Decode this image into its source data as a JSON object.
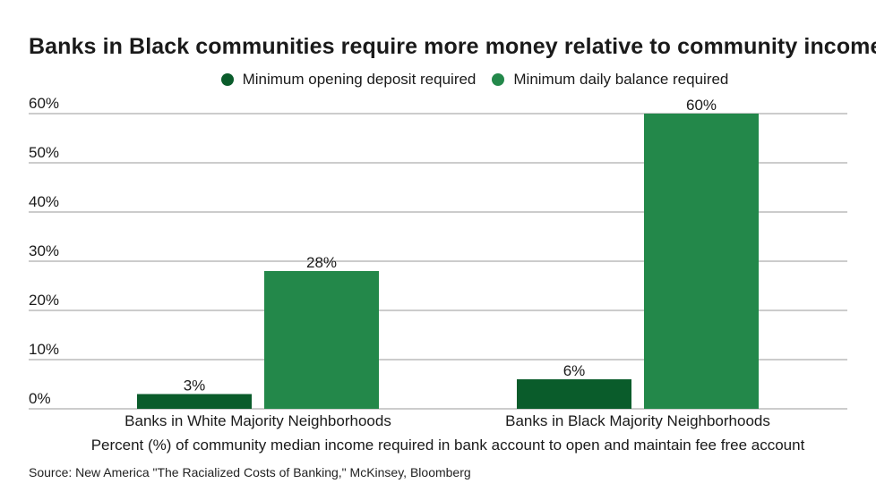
{
  "title": "Banks in Black communities require more money relative to community income",
  "source": "Source: New America \"The Racialized Costs of Banking,\" McKinsey, Bloomberg",
  "colors": {
    "deposit": "#0a5c2b",
    "balance": "#23884a",
    "grid": "#9a9a9a",
    "text": "#1a1a1a"
  },
  "chart_data": {
    "type": "bar",
    "title": "Banks in Black communities require more money relative to community income",
    "xlabel": "Percent (%) of community median income required in bank account to open and maintain fee free account",
    "ylabel": "",
    "categories": [
      "Banks in White Majority Neighborhoods",
      "Banks in Black Majority Neighborhoods"
    ],
    "series": [
      {
        "name": "Minimum opening deposit required",
        "values": [
          3,
          6
        ],
        "labels": [
          "3%",
          "6%"
        ]
      },
      {
        "name": "Minimum daily balance required",
        "values": [
          28,
          60
        ],
        "labels": [
          "28%",
          "60%"
        ]
      }
    ],
    "ylim": [
      0,
      60
    ],
    "yticks": [
      0,
      10,
      20,
      30,
      40,
      50,
      60
    ],
    "ytick_labels": [
      "0%",
      "10%",
      "20%",
      "30%",
      "40%",
      "50%",
      "60%"
    ],
    "grid": true,
    "legend": "top-center"
  }
}
